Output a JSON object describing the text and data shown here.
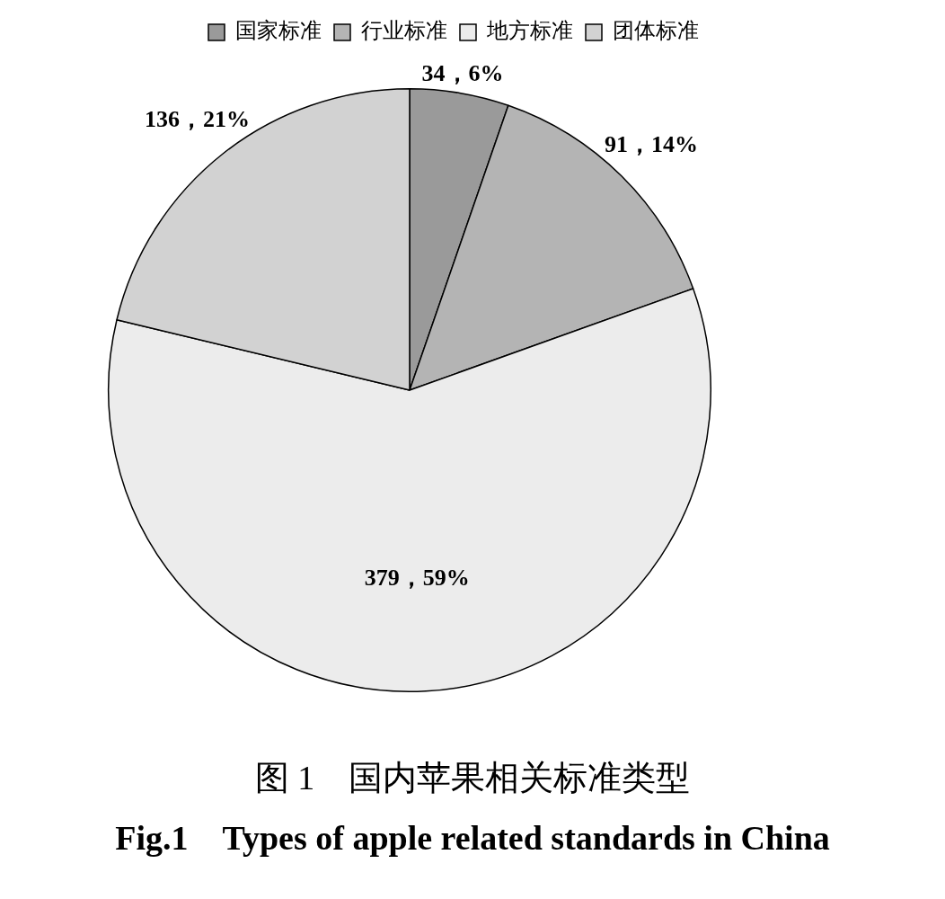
{
  "chart_data": {
    "type": "pie",
    "title": "图 1　国内苹果相关标准类型",
    "subtitle": "Fig.1　Types of apple related standards in China",
    "categories": [
      "国家标准",
      "行业标准",
      "地方标准",
      "团体标准"
    ],
    "values": [
      34,
      91,
      379,
      136
    ],
    "colors": [
      "#9a9a9a",
      "#b4b4b4",
      "#ececec",
      "#d2d2d2"
    ],
    "value_labels": [
      "34，6%",
      "91，14%",
      "379，59%",
      "136，21%"
    ],
    "legend": "top right"
  }
}
